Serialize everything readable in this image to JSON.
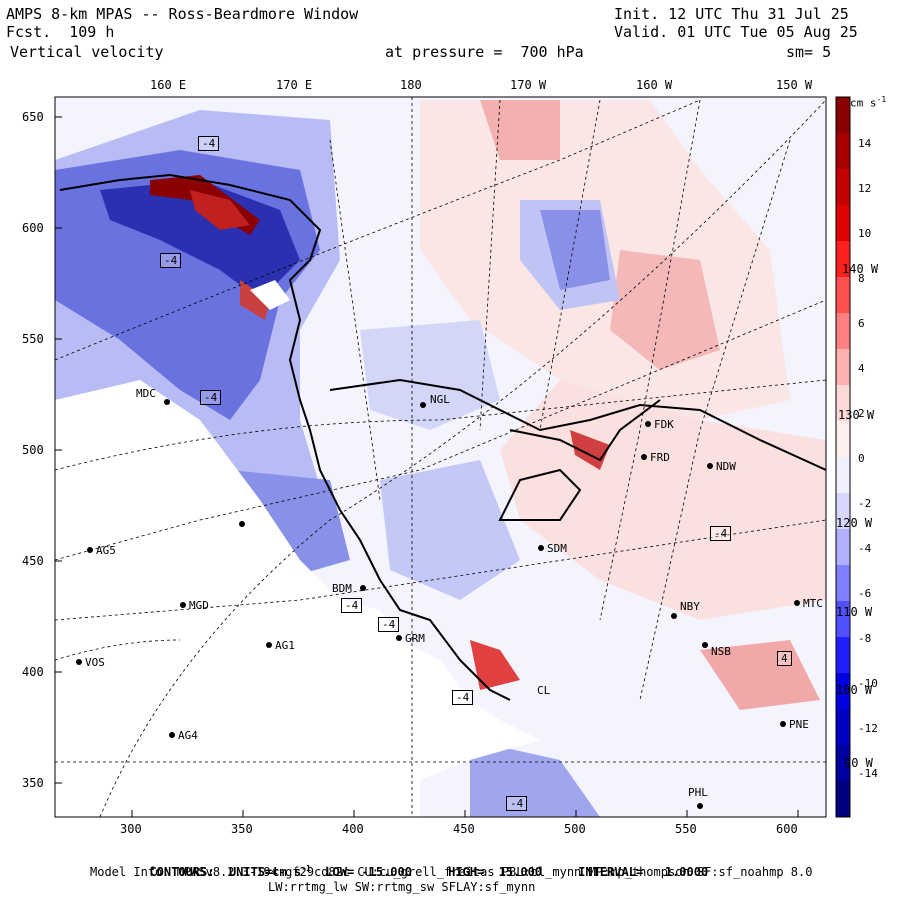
{
  "header": {
    "title": "AMPS 8-km MPAS -- Ross-Beardmore Window",
    "fcst": "Fcst.  109 h",
    "variable": "Vertical velocity",
    "pressure": "at pressure =  700 hPa",
    "init": "Init. 12 UTC Thu 31 Jul 25",
    "valid": "Valid. 01 UTC Tue 05 Aug 25",
    "smooth": "sm= 5"
  },
  "lon_labels": [
    "160 E",
    "170 E",
    "180",
    "170 W",
    "160 W",
    "150 W"
  ],
  "lat_side_labels": [
    "140 W",
    "130 W",
    "120 W",
    "110 W",
    "100 W",
    "90 W"
  ],
  "y_ticks": [
    "650",
    "600",
    "550",
    "500",
    "450",
    "400",
    "350"
  ],
  "x_ticks": [
    "300",
    "350",
    "400",
    "450",
    "500",
    "550",
    "600"
  ],
  "colorbar": {
    "unit": "cm s",
    "unit_sup": "-1",
    "labels": [
      "14",
      "12",
      "10",
      "8",
      "6",
      "4",
      "2",
      "0",
      "-2",
      "-4",
      "-6",
      "-8",
      "-10",
      "-12",
      "-14"
    ],
    "colors": [
      "#8b0000",
      "#a80000",
      "#c40000",
      "#e00000",
      "#ff2020",
      "#ff5050",
      "#ff8080",
      "#ffb0b0",
      "#ffd8d8",
      "#fff0f0",
      "#f0f0ff",
      "#d8d8ff",
      "#b0b0ff",
      "#8080ff",
      "#5050ff",
      "#2020ff",
      "#0000e0",
      "#0000c0",
      "#0000a0",
      "#000080"
    ]
  },
  "stations": [
    {
      "id": "MDC",
      "label": "MDC"
    },
    {
      "id": "NGL",
      "label": "NGL"
    },
    {
      "id": "FDK",
      "label": "FDK"
    },
    {
      "id": "FRD",
      "label": "FRD"
    },
    {
      "id": "NDW",
      "label": "NDW"
    },
    {
      "id": "SDM",
      "label": "SDM"
    },
    {
      "id": "AG5",
      "label": "AG5"
    },
    {
      "id": "MGD",
      "label": "MGD"
    },
    {
      "id": "BDM",
      "label": "BDM"
    },
    {
      "id": "AG1",
      "label": "AG1"
    },
    {
      "id": "GRM",
      "label": "GRM"
    },
    {
      "id": "NBY",
      "label": "NBY"
    },
    {
      "id": "MTC",
      "label": "MTC"
    },
    {
      "id": "NSB",
      "label": "NSB"
    },
    {
      "id": "VOS",
      "label": "VOS"
    },
    {
      "id": "AG4",
      "label": "AG4"
    },
    {
      "id": "PNE",
      "label": "PNE"
    },
    {
      "id": "PHL",
      "label": "PHL"
    },
    {
      "id": "CL",
      "label": "CL"
    }
  ],
  "footer": {
    "contours_label": "CONTOURS:",
    "units": "UNITS=cm s",
    "units_sup": "-1",
    "low": "LOW= -15.000",
    "high": "HIGH=  15.000",
    "interval": "INTERVAL=   1.0000",
    "model_info": "Model Info: MPASv8.2.3-194-gf29cd82c CU:cu_grell_freitas PBL:bl_mynn MP:mp_thompson SF:sf_noahmp 8.0",
    "model_info2": "LW:rrtmg_lw SW:rrtmg_sw SFLAY:sf_mynn"
  },
  "contour_boxes": [
    "-4",
    "-4",
    "-4",
    "-4",
    "-4",
    "-4",
    "4",
    "-4",
    "-4"
  ]
}
